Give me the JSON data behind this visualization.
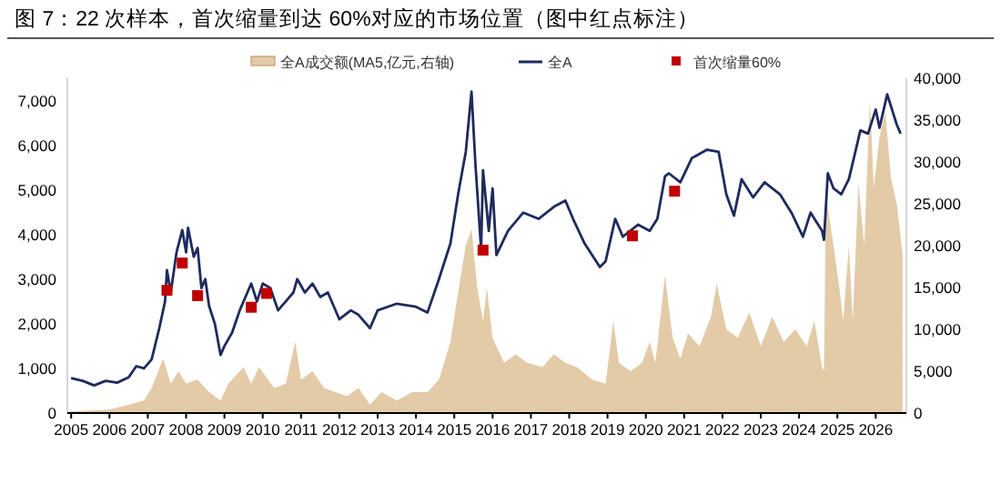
{
  "chart_data": {
    "type": "line",
    "title": "图 7：22 次样本，首次缩量到达 60%对应的市场位置（图中红点标注）",
    "xlim": [
      2004.9,
      2026.8
    ],
    "xticks": [
      2005,
      2006,
      2007,
      2008,
      2009,
      2010,
      2011,
      2012,
      2013,
      2014,
      2015,
      2016,
      2017,
      2018,
      2019,
      2020,
      2021,
      2022,
      2023,
      2024,
      2025,
      2026
    ],
    "ylim": [
      0,
      7500
    ],
    "yticks": [
      0,
      {
        "value": 1000,
        "label": "1,000"
      },
      {
        "value": 2000,
        "label": "2,000"
      },
      {
        "value": 3000,
        "label": "3,000"
      },
      {
        "value": 4000,
        "label": "4,000"
      },
      {
        "value": 5000,
        "label": "5,000"
      },
      {
        "value": 6000,
        "label": "6,000"
      },
      {
        "value": 7000,
        "label": "7,000"
      }
    ],
    "y2lim": [
      0,
      40000
    ],
    "y2ticks": [
      0,
      {
        "value": 5000,
        "label": "5,000"
      },
      {
        "value": 10000,
        "label": "10,000"
      },
      {
        "value": 15000,
        "label": "15,000"
      },
      {
        "value": 20000,
        "label": "20,000"
      },
      {
        "value": 25000,
        "label": "25,000"
      },
      {
        "value": 30000,
        "label": "30,000"
      },
      {
        "value": 35000,
        "label": "35,000"
      },
      {
        "value": 40000,
        "label": "40,000"
      }
    ],
    "legend": "top",
    "grid": false,
    "series": [
      {
        "name": "全A成交额(MA5,亿元,右轴)",
        "type": "area",
        "axis": "y2",
        "color": "#e3cba8",
        "x": [
          2005.0,
          2006.0,
          2006.5,
          2006.9,
          2007.1,
          2007.4,
          2007.6,
          2007.8,
          2008.0,
          2008.3,
          2008.6,
          2008.9,
          2009.1,
          2009.5,
          2009.7,
          2009.9,
          2010.3,
          2010.6,
          2010.85,
          2011.0,
          2011.3,
          2011.6,
          2011.9,
          2012.2,
          2012.5,
          2012.8,
          2013.1,
          2013.5,
          2013.9,
          2014.3,
          2014.6,
          2014.9,
          2015.05,
          2015.3,
          2015.45,
          2015.6,
          2015.75,
          2015.85,
          2016.0,
          2016.3,
          2016.6,
          2016.9,
          2017.3,
          2017.6,
          2017.9,
          2018.2,
          2018.6,
          2018.95,
          2019.15,
          2019.3,
          2019.6,
          2019.9,
          2020.1,
          2020.25,
          2020.5,
          2020.7,
          2020.9,
          2021.1,
          2021.4,
          2021.7,
          2021.85,
          2022.1,
          2022.4,
          2022.7,
          2023.0,
          2023.3,
          2023.6,
          2023.9,
          2024.2,
          2024.4,
          2024.6,
          2024.65,
          2024.7,
          2024.9,
          2025.05,
          2025.15,
          2025.3,
          2025.4,
          2025.55,
          2025.7,
          2025.85,
          2025.95,
          2026.1,
          2026.25,
          2026.4,
          2026.55,
          2026.7
        ],
        "values": [
          200,
          400,
          1000,
          1500,
          3000,
          6500,
          3500,
          5000,
          3500,
          4000,
          2500,
          1500,
          3500,
          5500,
          3500,
          5500,
          3000,
          3500,
          8500,
          4000,
          5000,
          3000,
          2500,
          2000,
          3000,
          1000,
          2500,
          1500,
          2500,
          2500,
          4000,
          8500,
          13000,
          20000,
          22000,
          15000,
          11000,
          15000,
          9000,
          6000,
          7000,
          6000,
          5500,
          7000,
          6000,
          5500,
          4000,
          3500,
          11000,
          6000,
          5000,
          6000,
          8500,
          6000,
          16500,
          9000,
          6500,
          9500,
          8000,
          11500,
          15500,
          10000,
          9000,
          12000,
          8000,
          11500,
          8500,
          10000,
          8000,
          11000,
          5500,
          5000,
          26000,
          20000,
          15000,
          11000,
          20000,
          11000,
          27500,
          20000,
          37500,
          27000,
          33000,
          36000,
          28000,
          25000,
          19000
        ]
      },
      {
        "name": "全A",
        "type": "line",
        "color": "#1f2a5e",
        "x": [
          2005.0,
          2005.3,
          2005.6,
          2005.9,
          2006.2,
          2006.5,
          2006.7,
          2006.9,
          2007.1,
          2007.3,
          2007.45,
          2007.5,
          2007.6,
          2007.75,
          2007.9,
          2008.0,
          2008.05,
          2008.2,
          2008.3,
          2008.4,
          2008.5,
          2008.6,
          2008.75,
          2008.9,
          2009.0,
          2009.2,
          2009.4,
          2009.6,
          2009.7,
          2009.85,
          2010.0,
          2010.2,
          2010.4,
          2010.6,
          2010.8,
          2010.9,
          2011.1,
          2011.3,
          2011.5,
          2011.7,
          2012.0,
          2012.3,
          2012.5,
          2012.8,
          2013.0,
          2013.5,
          2014.0,
          2014.3,
          2014.6,
          2014.9,
          2015.1,
          2015.3,
          2015.45,
          2015.55,
          2015.7,
          2015.75,
          2015.9,
          2016.0,
          2016.1,
          2016.4,
          2016.8,
          2017.2,
          2017.6,
          2017.9,
          2018.1,
          2018.4,
          2018.8,
          2018.95,
          2019.2,
          2019.4,
          2019.8,
          2020.1,
          2020.3,
          2020.5,
          2020.6,
          2020.9,
          2021.2,
          2021.6,
          2021.9,
          2022.1,
          2022.3,
          2022.5,
          2022.8,
          2023.1,
          2023.5,
          2023.8,
          2024.1,
          2024.3,
          2024.6,
          2024.65,
          2024.75,
          2024.9,
          2025.1,
          2025.3,
          2025.6,
          2025.8,
          2026.0,
          2026.1,
          2026.3,
          2026.45,
          2026.55,
          2026.65
        ],
        "values": [
          780,
          720,
          620,
          720,
          680,
          800,
          1050,
          1000,
          1200,
          1900,
          2500,
          3200,
          2700,
          3600,
          4100,
          3600,
          4150,
          3500,
          3700,
          2800,
          3000,
          2400,
          2000,
          1300,
          1500,
          1800,
          2300,
          2700,
          2900,
          2500,
          2900,
          2800,
          2300,
          2500,
          2700,
          3000,
          2700,
          2900,
          2600,
          2700,
          2100,
          2300,
          2200,
          1900,
          2300,
          2450,
          2380,
          2250,
          3000,
          3800,
          4900,
          5850,
          7200,
          5600,
          3670,
          5440,
          4080,
          5030,
          3540,
          4080,
          4490,
          4350,
          4620,
          4760,
          4350,
          3800,
          3270,
          3400,
          4350,
          3950,
          4220,
          4080,
          4350,
          5300,
          5370,
          5170,
          5710,
          5900,
          5850,
          4900,
          4420,
          5240,
          4830,
          5170,
          4900,
          4490,
          3950,
          4490,
          4080,
          3880,
          5370,
          5030,
          4900,
          5240,
          6330,
          6260,
          6800,
          6390,
          7140,
          6730,
          6460,
          6260
        ]
      },
      {
        "name": "首次缩量60%",
        "type": "scatter",
        "marker": "square",
        "color": "#c00000",
        "x": [
          2007.5,
          2007.9,
          2008.3,
          2009.7,
          2010.1,
          2015.75,
          2019.65,
          2020.75
        ],
        "values": [
          2750,
          3360,
          2630,
          2370,
          2680,
          3650,
          3970,
          4970
        ]
      }
    ]
  }
}
